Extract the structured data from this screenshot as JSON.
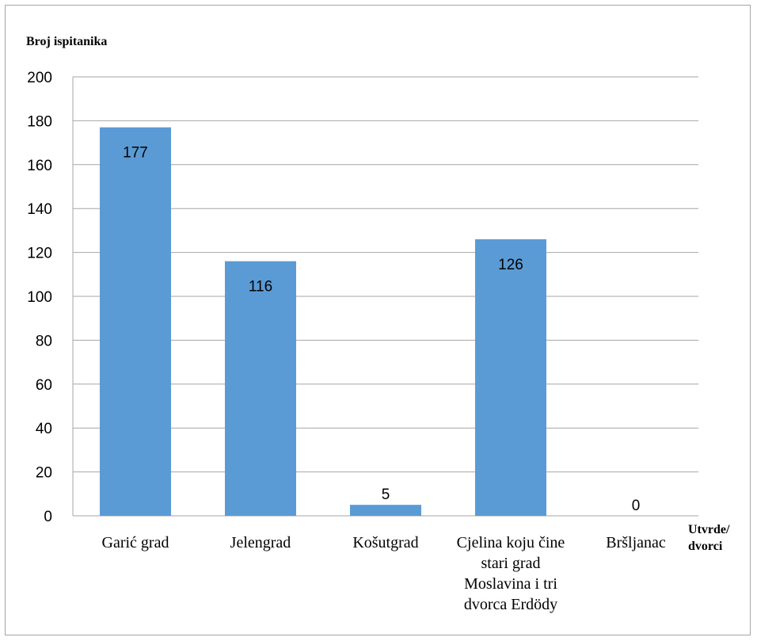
{
  "chart_data": {
    "type": "bar",
    "title": "",
    "ylabel": "Broj ispitanika",
    "xlabel": "Utvrde/ dvorci",
    "ylim": [
      0,
      200
    ],
    "yticks": [
      0,
      20,
      40,
      60,
      80,
      100,
      120,
      140,
      160,
      180,
      200
    ],
    "grid": true,
    "bar_color": "#5b9bd5",
    "categories": [
      "Garić grad",
      "Jelengrad",
      "Košutgrad",
      "Cjelina koju čine stari grad Moslavina i tri dvorca Erdödy",
      "Bršljanac"
    ],
    "values": [
      177,
      116,
      5,
      126,
      0
    ],
    "data_labels": [
      "177",
      "116",
      "5",
      "126",
      "0"
    ]
  }
}
